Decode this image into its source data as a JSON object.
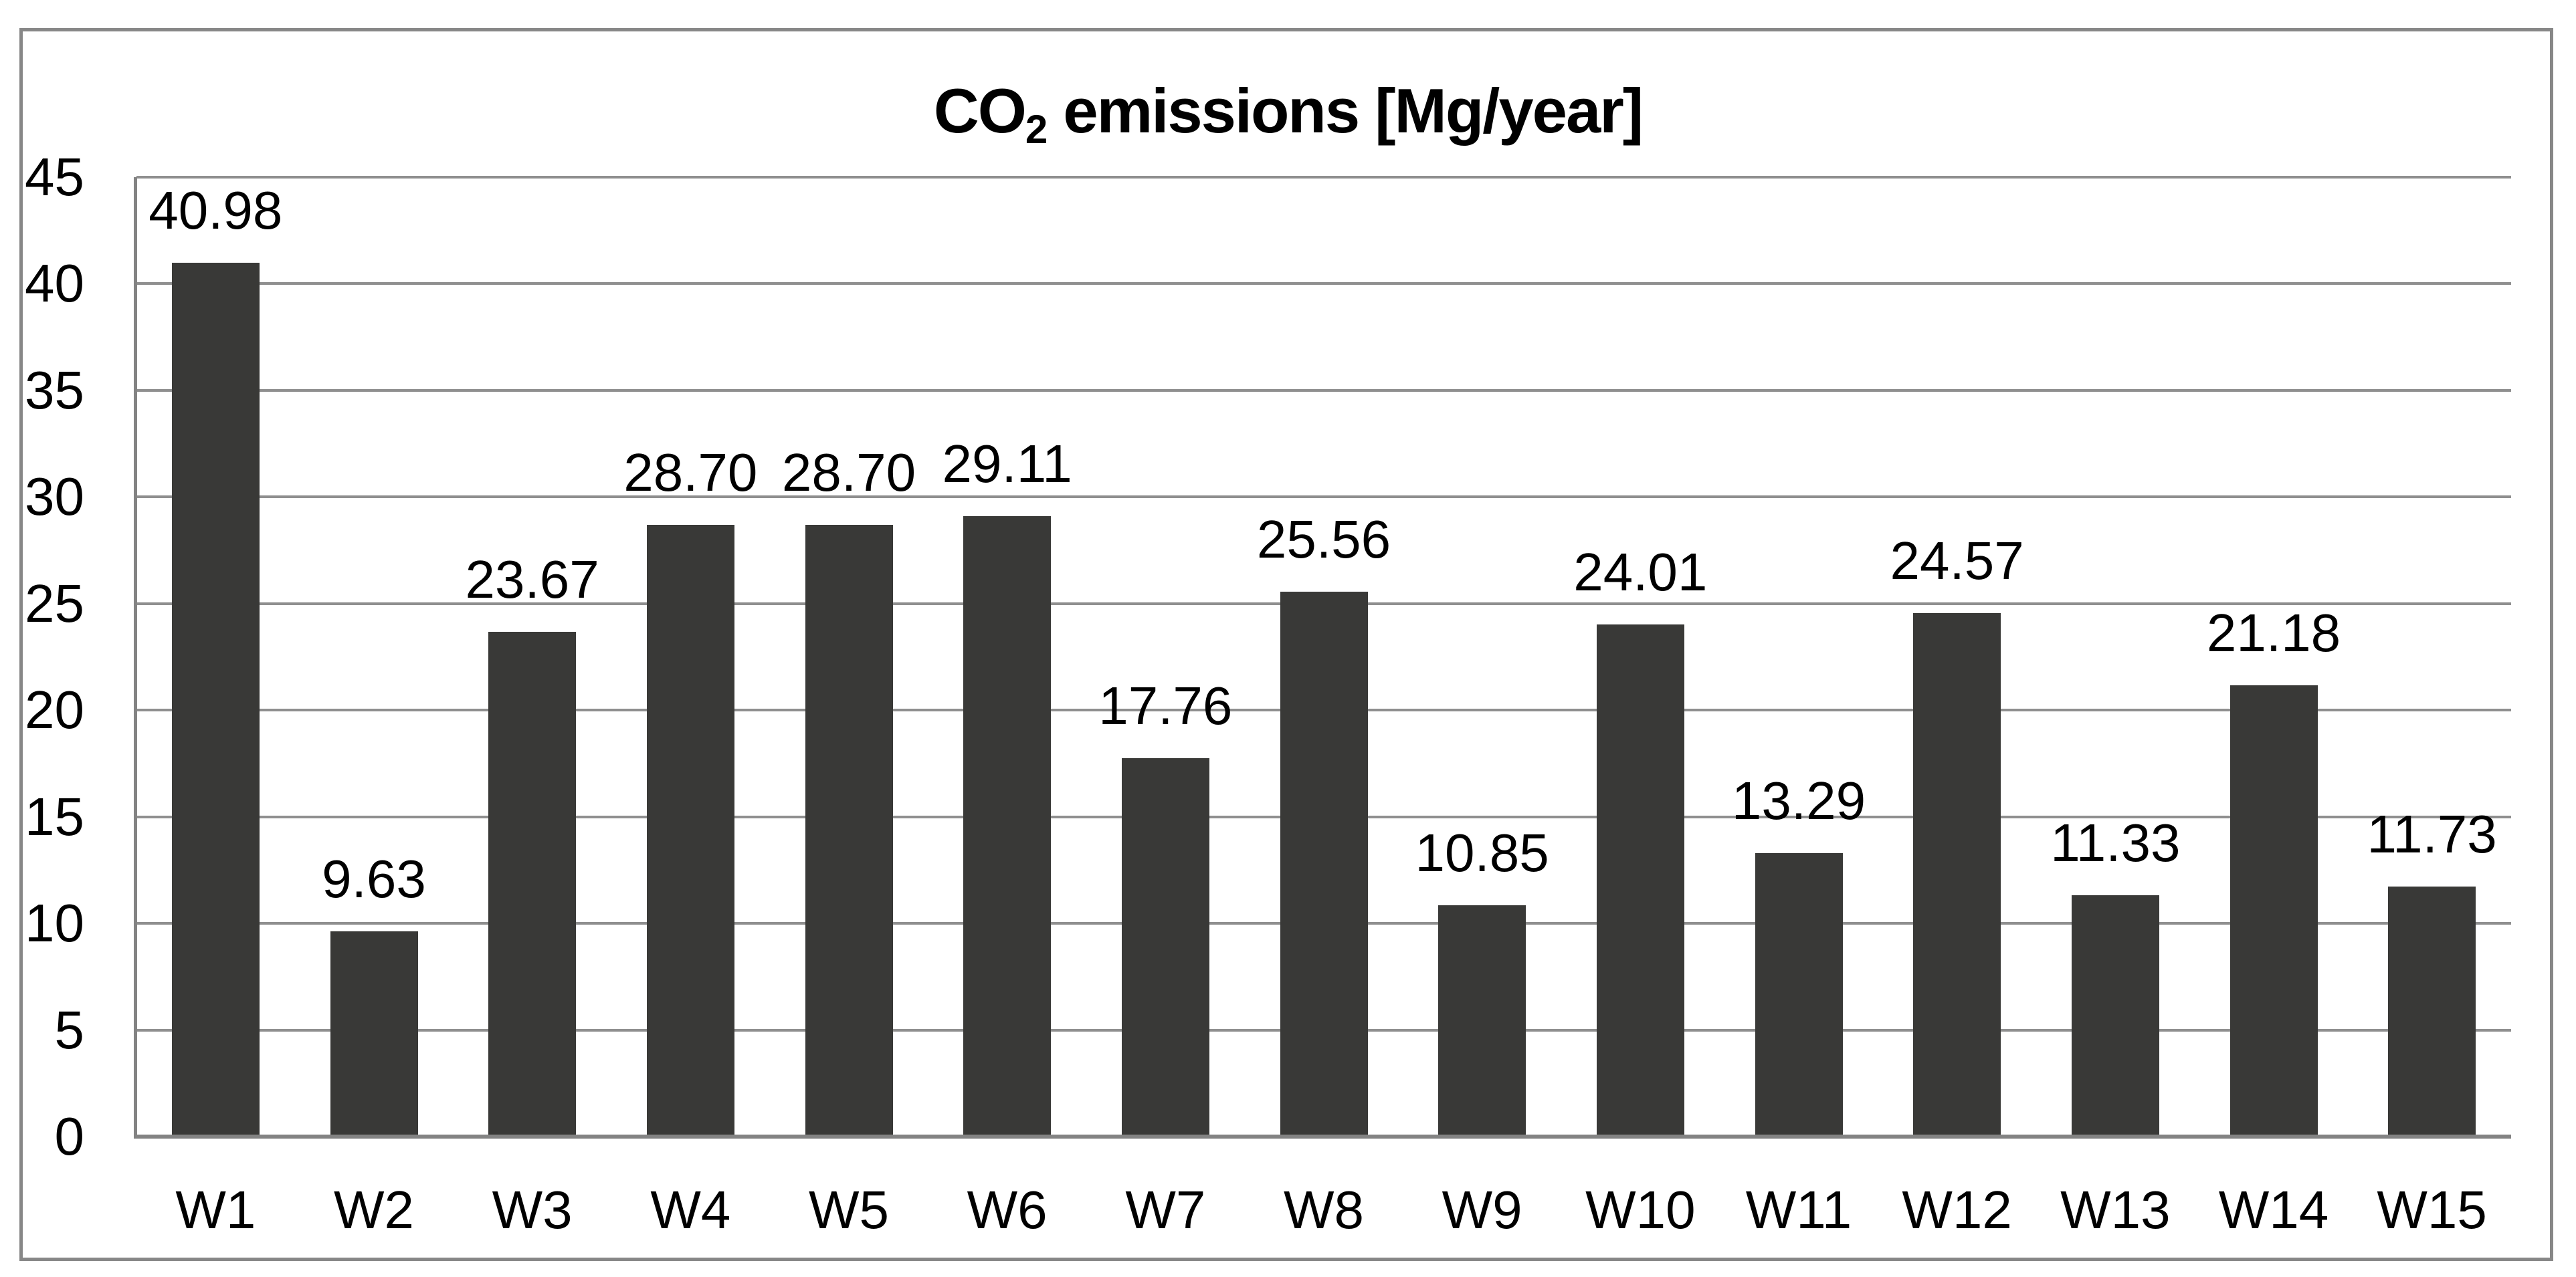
{
  "title": {
    "text": "CO2 emissions [Mg/year]",
    "main": "CO",
    "sub": "2",
    "rest": " emissions [Mg/year]"
  },
  "chart_data": {
    "type": "bar",
    "title": "CO2 emissions [Mg/year]",
    "xlabel": "",
    "ylabel": "",
    "categories": [
      "W1",
      "W2",
      "W3",
      "W4",
      "W5",
      "W6",
      "W7",
      "W8",
      "W9",
      "W10",
      "W11",
      "W12",
      "W13",
      "W14",
      "W15"
    ],
    "values": [
      40.98,
      9.63,
      23.67,
      28.7,
      28.7,
      29.11,
      17.76,
      25.56,
      10.85,
      24.01,
      13.29,
      24.57,
      11.33,
      21.18,
      11.73
    ],
    "value_labels": [
      "40.98",
      "9.63",
      "23.67",
      "28.70",
      "28.70",
      "29.11",
      "17.76",
      "25.56",
      "10.85",
      "24.01",
      "13.29",
      "24.57",
      "11.33",
      "21.18",
      "11.73"
    ],
    "y_ticks": [
      0,
      5,
      10,
      15,
      20,
      25,
      30,
      35,
      40,
      45
    ],
    "ylim": [
      0,
      45
    ],
    "grid": true,
    "legend": "none",
    "bar_color": "#393937",
    "gridline_color": "#8f8f8f",
    "axis_color": "#838383",
    "border_color": "#878787",
    "background_color": "#ffffff",
    "text_color": "#000000"
  }
}
